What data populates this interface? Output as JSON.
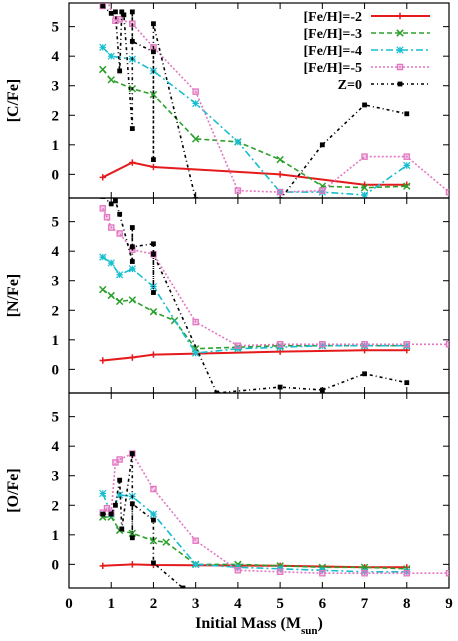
{
  "chart_data": {
    "type": "line",
    "xlabel": "Initial Mass (M",
    "xlabel_sub": "sun",
    "xlabel_close": ")",
    "xlim": [
      0,
      9
    ],
    "xticks": [
      "0",
      "1",
      "2",
      "3",
      "4",
      "5",
      "6",
      "7",
      "8",
      "9"
    ],
    "ylim": [
      -0.8,
      5.8
    ],
    "yticks": [
      "0",
      "1",
      "2",
      "3",
      "4",
      "5"
    ],
    "legend": {
      "placement": "top-right",
      "panel": 0
    },
    "series_styles": [
      {
        "name": "[Fe/H]=-2",
        "color": "#e41a1c",
        "dash": "",
        "marker": "plus"
      },
      {
        "name": "[Fe/H]=-3",
        "color": "#2ca02c",
        "dash": "5,3",
        "marker": "cross"
      },
      {
        "name": "[Fe/H]=-4",
        "color": "#17becf",
        "dash": "7,3,2,3",
        "marker": "star"
      },
      {
        "name": "[Fe/H]=-5",
        "color": "#e377c2",
        "dash": "2,2",
        "marker": "square-open"
      },
      {
        "name": "Z=0",
        "color": "#000000",
        "dash": "3,3,1,3",
        "marker": "square-filled"
      }
    ],
    "panels": [
      {
        "ylabel": "[C/Fe]",
        "series": [
          {
            "x": [
              0.8,
              1.5,
              2,
              5,
              7,
              8
            ],
            "y": [
              -0.1,
              0.4,
              0.25,
              0.0,
              -0.35,
              -0.35
            ]
          },
          {
            "x": [
              0.8,
              1,
              1.5,
              2,
              3,
              4,
              5,
              6,
              7,
              8
            ],
            "y": [
              3.55,
              3.2,
              2.9,
              2.7,
              1.2,
              1.1,
              0.5,
              -0.4,
              -0.45,
              -0.4
            ]
          },
          {
            "x": [
              0.8,
              1,
              1.5,
              2,
              3,
              4,
              5,
              6,
              7,
              8
            ],
            "y": [
              4.3,
              4.0,
              3.9,
              3.5,
              2.4,
              1.1,
              -0.6,
              -0.6,
              -0.7,
              0.3
            ]
          },
          {
            "x": [
              0.8,
              0.9,
              1.1,
              1.2,
              1.5,
              2,
              3,
              4,
              5,
              6,
              7,
              8,
              9
            ],
            "y": [
              5.7,
              5.9,
              5.2,
              5.25,
              5.1,
              4.3,
              2.8,
              -0.55,
              -0.6,
              -0.55,
              0.6,
              0.6,
              -0.6
            ]
          },
          {
            "x": [
              0.8,
              1,
              1.1,
              1.2,
              1.25,
              1.3,
              1.5,
              1.5,
              1.5,
              2,
              2,
              2,
              3,
              5,
              6,
              7,
              8
            ],
            "y": [
              5.7,
              5.45,
              5.5,
              3.5,
              5.5,
              5.4,
              1.55,
              5.5,
              4.5,
              4.15,
              0.5,
              5.1,
              -0.85,
              -0.85,
              1.0,
              2.35,
              2.05
            ]
          }
        ]
      },
      {
        "ylabel": "[N/Fe]",
        "series": [
          {
            "x": [
              0.8,
              1.5,
              2,
              5,
              7,
              8
            ],
            "y": [
              0.3,
              0.4,
              0.5,
              0.6,
              0.65,
              0.65
            ]
          },
          {
            "x": [
              0.8,
              1,
              1.2,
              1.5,
              2,
              2.5,
              3,
              4,
              5,
              6,
              7,
              8
            ],
            "y": [
              2.7,
              2.5,
              2.3,
              2.35,
              1.95,
              1.65,
              0.7,
              0.75,
              0.8,
              0.8,
              0.8,
              0.8
            ]
          },
          {
            "x": [
              0.8,
              1,
              1.2,
              1.5,
              2,
              3,
              4,
              5,
              6,
              7,
              8
            ],
            "y": [
              3.8,
              3.6,
              3.2,
              3.4,
              2.8,
              0.55,
              0.7,
              0.75,
              0.8,
              0.8,
              0.8
            ]
          },
          {
            "x": [
              0.8,
              0.9,
              1,
              1.2,
              1.5,
              2,
              3,
              4,
              5,
              6,
              7,
              8,
              9
            ],
            "y": [
              5.45,
              5.15,
              4.8,
              4.6,
              4.05,
              3.9,
              1.6,
              0.8,
              0.85,
              0.85,
              0.85,
              0.85,
              0.85
            ]
          },
          {
            "x": [
              0.8,
              1,
              1.1,
              1.2,
              1.5,
              1.5,
              1.5,
              2,
              2,
              2,
              3.5,
              5,
              6,
              7,
              8
            ],
            "y": [
              5.85,
              5.6,
              5.7,
              5.25,
              3.65,
              4.8,
              4.15,
              4.25,
              2.6,
              3.9,
              -0.8,
              -0.6,
              -0.7,
              -0.15,
              -0.45
            ]
          }
        ]
      },
      {
        "ylabel": "[O/Fe]",
        "series": [
          {
            "x": [
              0.8,
              1.5,
              2,
              5,
              7,
              8
            ],
            "y": [
              -0.05,
              0.0,
              -0.02,
              -0.05,
              -0.1,
              -0.1
            ]
          },
          {
            "x": [
              0.8,
              1,
              1.2,
              1.5,
              2,
              2.3,
              3,
              4,
              5,
              6,
              7,
              8
            ],
            "y": [
              1.6,
              1.6,
              1.15,
              1.05,
              0.8,
              0.75,
              0.0,
              0.0,
              -0.05,
              -0.1,
              -0.1,
              -0.15
            ]
          },
          {
            "x": [
              0.8,
              1,
              1.2,
              1.5,
              2,
              3,
              4,
              5,
              6,
              7,
              8
            ],
            "y": [
              2.4,
              1.7,
              2.35,
              2.3,
              1.7,
              0.0,
              -0.1,
              -0.15,
              -0.2,
              -0.25,
              -0.25
            ]
          },
          {
            "x": [
              0.8,
              0.9,
              1,
              1.1,
              1.2,
              1.5,
              2,
              3,
              4,
              5,
              6,
              7,
              8,
              9
            ],
            "y": [
              1.75,
              1.9,
              1.75,
              3.45,
              3.55,
              3.75,
              2.55,
              0.8,
              -0.2,
              -0.25,
              -0.3,
              -0.3,
              -0.3,
              -0.3
            ]
          },
          {
            "x": [
              0.8,
              1,
              1.1,
              1.2,
              1.25,
              1.5,
              1.5,
              1.5,
              2,
              2,
              2.7
            ],
            "y": [
              1.7,
              1.7,
              2.0,
              2.85,
              1.2,
              3.75,
              0.9,
              2.05,
              1.5,
              0.05,
              -0.8
            ]
          }
        ]
      }
    ]
  }
}
